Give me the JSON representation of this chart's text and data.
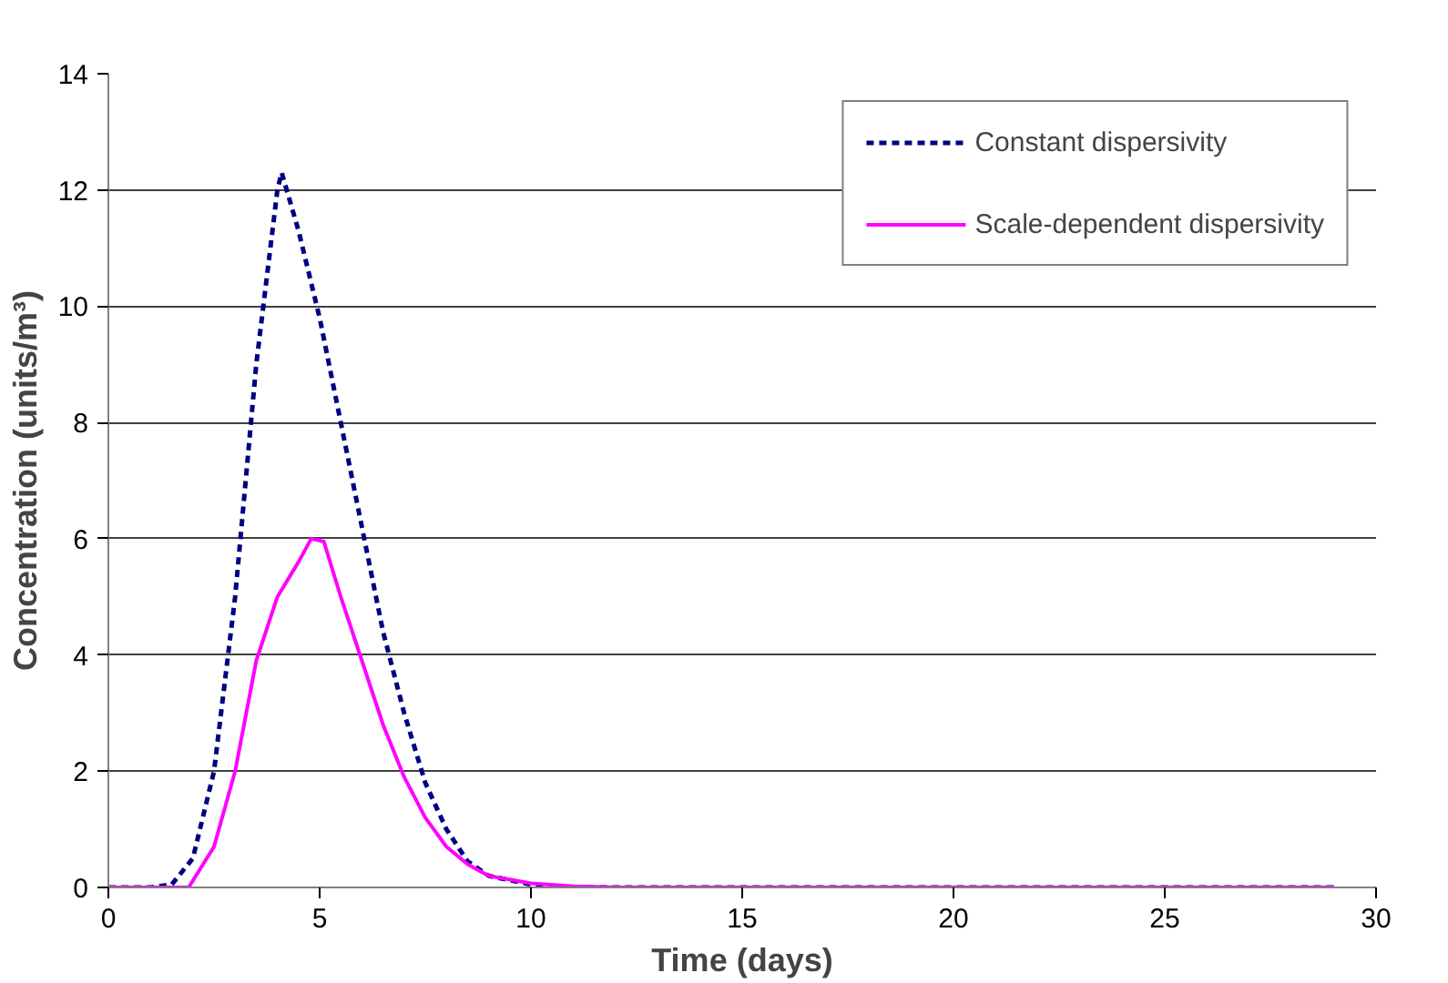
{
  "chart_data": {
    "type": "line",
    "xlabel": "Time (days)",
    "ylabel": "Concentration (units/m³)",
    "xlim": [
      0,
      30
    ],
    "xticks": [
      0,
      5,
      10,
      15,
      20,
      25,
      30
    ],
    "ylim": [
      0,
      14
    ],
    "yticks": [
      0,
      2,
      4,
      6,
      8,
      10,
      12,
      14
    ],
    "grid": "y",
    "legend": "top right",
    "marker": "none",
    "series": [
      {
        "name": "Constant dispersivity",
        "color": "#000080",
        "line_style": "dotted",
        "x": [
          0,
          1,
          1.5,
          2,
          2.5,
          3,
          3.5,
          4,
          4.1,
          4.5,
          5,
          5.5,
          6,
          6.5,
          7,
          7.5,
          8,
          8.5,
          9,
          10,
          11,
          29
        ],
        "values": [
          0,
          0,
          0.05,
          0.5,
          2,
          5,
          9,
          12,
          12.3,
          11.3,
          9.8,
          8,
          6.2,
          4.4,
          3,
          1.8,
          1,
          0.45,
          0.2,
          0.05,
          0,
          0
        ]
      },
      {
        "name": "Scale-dependent dispersivity",
        "color": "#ff00ff",
        "line_style": "solid",
        "x": [
          0,
          1.9,
          2.5,
          3,
          3.5,
          4,
          4.5,
          4.8,
          5.1,
          5.5,
          6,
          6.5,
          7,
          7.5,
          8,
          8.5,
          9,
          10,
          11,
          12,
          29
        ],
        "values": [
          0,
          0,
          0.7,
          2,
          3.9,
          5,
          5.6,
          6,
          5.95,
          5,
          3.9,
          2.8,
          1.9,
          1.2,
          0.7,
          0.4,
          0.2,
          0.07,
          0.02,
          0,
          0
        ]
      }
    ]
  }
}
